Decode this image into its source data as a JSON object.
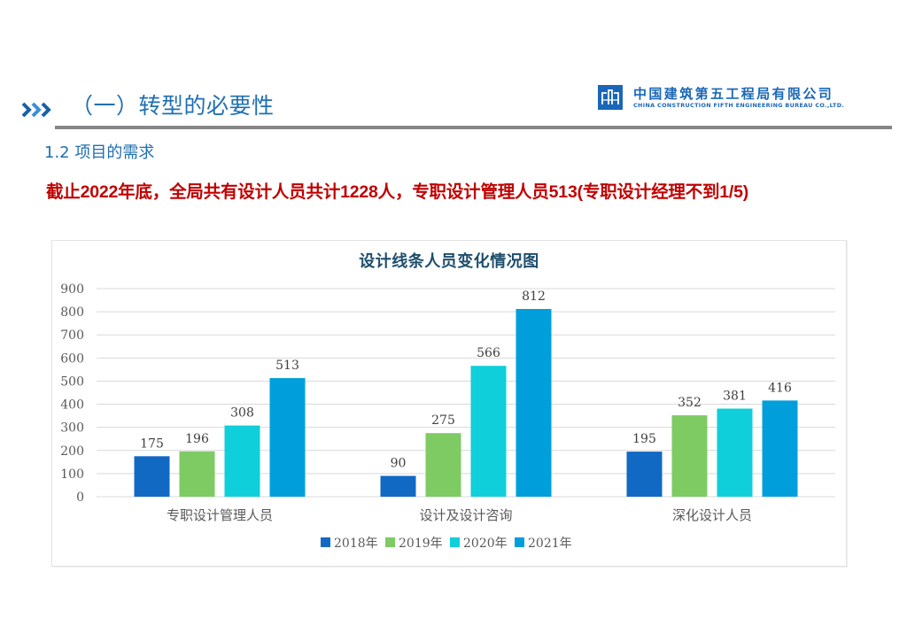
{
  "header": {
    "section_icon": "triple-chevron-right-icon",
    "section_title": "（一）转型的必要性",
    "logo": {
      "icon": "cscec-logo-icon",
      "name_cn": "中国建筑第五工程局有限公司",
      "name_en": "CHINA CONSTRUCTION FIFTH ENGINEERING BUREAU CO.,LTD."
    }
  },
  "subtitle": "1.2 项目的需求",
  "headline": "截止2022年底，全局共有设计人员共计1228人，专职设计管理人员513(专职设计经理不到1/5)",
  "colors": {
    "accent_blue": "#1f6fb2",
    "headline_red": "#c00000",
    "series": [
      "#1269c4",
      "#7ecb64",
      "#0fcfda",
      "#009fdb"
    ]
  },
  "chart_data": {
    "type": "bar",
    "title": "设计线条人员变化情况图",
    "xlabel": "",
    "ylabel": "",
    "ylim": [
      0,
      900
    ],
    "yticks": [
      0,
      100,
      200,
      300,
      400,
      500,
      600,
      700,
      800,
      900
    ],
    "grid": true,
    "legend_position": "bottom",
    "categories": [
      "专职设计管理人员",
      "设计及设计咨询",
      "深化设计人员"
    ],
    "series": [
      {
        "name": "2018年",
        "color": "#1269c4",
        "values": [
          175,
          90,
          195
        ]
      },
      {
        "name": "2019年",
        "color": "#7ecb64",
        "values": [
          196,
          275,
          352
        ]
      },
      {
        "name": "2020年",
        "color": "#0fcfda",
        "values": [
          308,
          566,
          381
        ]
      },
      {
        "name": "2021年",
        "color": "#009fdb",
        "values": [
          513,
          812,
          416
        ]
      }
    ],
    "data_labels": true
  }
}
